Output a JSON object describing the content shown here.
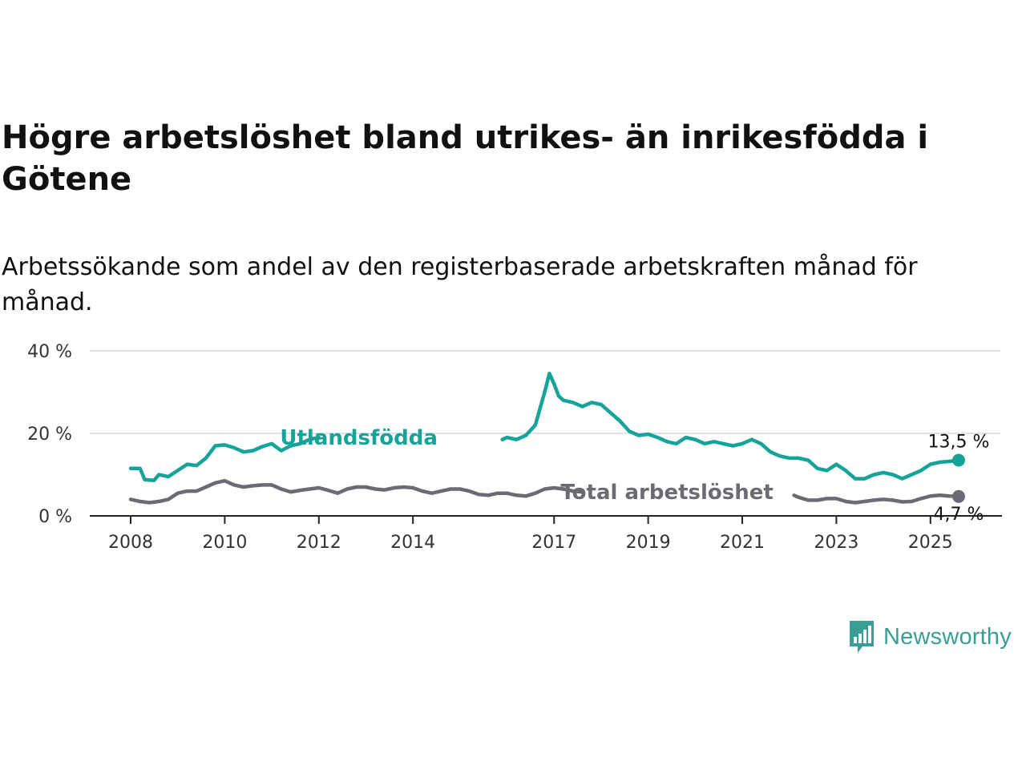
{
  "title": "Högre arbetslöshet bland utrikes- än inrikesfödda i Götene",
  "subtitle": "Arbetssökande som andel av den registerbaserade arbetskraften månad för månad.",
  "brand": {
    "name": "Newsworthy",
    "icon": "newsworthy-logo-icon",
    "color": "#3a9e96"
  },
  "chart_data": {
    "type": "line",
    "title": "Högre arbetslöshet bland utrikes- än inrikesfödda i Götene",
    "subtitle": "Arbetssökande som andel av den registerbaserade arbetskraften månad för månad.",
    "xlabel": "",
    "ylabel": "",
    "xlim": [
      2008,
      2025.6
    ],
    "ylim": [
      0,
      40
    ],
    "grid": true,
    "x_ticks": [
      {
        "value": 2008,
        "label": "2008"
      },
      {
        "value": 2010,
        "label": "2010"
      },
      {
        "value": 2012,
        "label": "2012"
      },
      {
        "value": 2014,
        "label": "2014"
      },
      {
        "value": 2017,
        "label": "2017"
      },
      {
        "value": 2019,
        "label": "2019"
      },
      {
        "value": 2021,
        "label": "2021"
      },
      {
        "value": 2023,
        "label": "2023"
      },
      {
        "value": 2025,
        "label": "2025"
      }
    ],
    "y_ticks": [
      {
        "value": 0,
        "label": "0 %"
      },
      {
        "value": 20,
        "label": "20 %"
      },
      {
        "value": 40,
        "label": "40 %"
      }
    ],
    "series": [
      {
        "name": "Utlandsfödda",
        "color": "#16a399",
        "end_label": "13,5 %",
        "label_at": 2012.85,
        "x": [
          2008.0,
          2008.2,
          2008.3,
          2008.5,
          2008.6,
          2008.8,
          2009.0,
          2009.2,
          2009.4,
          2009.6,
          2009.8,
          2010.0,
          2010.2,
          2010.4,
          2010.6,
          2010.8,
          2011.0,
          2011.2,
          2011.4,
          2011.6,
          2011.8,
          2012.0,
          null,
          2015.9,
          2016.0,
          2016.2,
          2016.4,
          2016.6,
          2016.8,
          2016.9,
          2017.0,
          2017.1,
          2017.2,
          2017.4,
          2017.6,
          2017.8,
          2018.0,
          2018.2,
          2018.4,
          2018.6,
          2018.8,
          2019.0,
          2019.2,
          2019.4,
          2019.6,
          2019.8,
          2020.0,
          2020.2,
          2020.4,
          2020.6,
          2020.8,
          2021.0,
          2021.2,
          2021.4,
          2021.6,
          2021.8,
          2022.0,
          2022.2,
          2022.4,
          2022.6,
          2022.8,
          2023.0,
          2023.2,
          2023.4,
          2023.6,
          2023.8,
          2024.0,
          2024.2,
          2024.4,
          2024.6,
          2024.8,
          2025.0,
          2025.2,
          2025.4,
          2025.6
        ],
        "y": [
          11.5,
          11.5,
          8.8,
          8.6,
          10.0,
          9.5,
          11.0,
          12.5,
          12.2,
          14.0,
          17.0,
          17.2,
          16.5,
          15.5,
          15.8,
          16.8,
          17.5,
          15.8,
          17.0,
          17.5,
          18.5,
          19.0,
          null,
          18.5,
          19.0,
          18.5,
          19.5,
          22.0,
          30.0,
          34.5,
          32.0,
          29.0,
          28.0,
          27.5,
          26.5,
          27.5,
          27.0,
          25.0,
          23.0,
          20.5,
          19.5,
          19.8,
          19.0,
          18.0,
          17.5,
          19.0,
          18.5,
          17.5,
          18.0,
          17.5,
          17.0,
          17.5,
          18.5,
          17.5,
          15.5,
          14.5,
          14.0,
          14.0,
          13.5,
          11.5,
          11.0,
          12.5,
          11.0,
          9.0,
          9.0,
          10.0,
          10.5,
          10.0,
          9.0,
          10.0,
          11.0,
          12.5,
          13.0,
          13.2,
          13.5
        ]
      },
      {
        "name": "Total arbetslöshet",
        "color": "#6c6a73",
        "end_label": "4,7 %",
        "label_at": 2019.4,
        "x": [
          2008.0,
          2008.2,
          2008.4,
          2008.6,
          2008.8,
          2009.0,
          2009.2,
          2009.4,
          2009.6,
          2009.8,
          2010.0,
          2010.2,
          2010.4,
          2010.6,
          2010.8,
          2011.0,
          2011.2,
          2011.4,
          2011.6,
          2011.8,
          2012.0,
          2012.2,
          2012.4,
          2012.6,
          2012.8,
          2013.0,
          2013.2,
          2013.4,
          2013.6,
          2013.8,
          2014.0,
          2014.2,
          2014.4,
          2014.6,
          2014.8,
          2015.0,
          2015.2,
          2015.4,
          2015.6,
          2015.8,
          2016.0,
          2016.2,
          2016.4,
          2016.6,
          2016.8,
          2017.0,
          2017.2,
          2017.4,
          2017.6,
          null,
          2022.1,
          2022.2,
          2022.4,
          2022.6,
          2022.8,
          2023.0,
          2023.2,
          2023.4,
          2023.6,
          2023.8,
          2024.0,
          2024.2,
          2024.4,
          2024.6,
          2024.8,
          2025.0,
          2025.2,
          2025.4,
          2025.6
        ],
        "y": [
          4.0,
          3.5,
          3.2,
          3.5,
          4.0,
          5.5,
          6.0,
          6.0,
          7.0,
          8.0,
          8.5,
          7.5,
          7.0,
          7.3,
          7.5,
          7.5,
          6.5,
          5.8,
          6.2,
          6.5,
          6.8,
          6.2,
          5.5,
          6.5,
          7.0,
          7.0,
          6.5,
          6.3,
          6.8,
          7.0,
          6.8,
          6.0,
          5.5,
          6.0,
          6.5,
          6.5,
          6.0,
          5.2,
          5.0,
          5.5,
          5.5,
          5.0,
          4.8,
          5.5,
          6.5,
          6.8,
          6.5,
          6.0,
          5.8,
          null,
          5.0,
          4.5,
          3.8,
          3.8,
          4.2,
          4.2,
          3.5,
          3.2,
          3.5,
          3.8,
          4.0,
          3.8,
          3.4,
          3.5,
          4.2,
          4.8,
          5.0,
          4.8,
          4.7
        ]
      }
    ]
  }
}
